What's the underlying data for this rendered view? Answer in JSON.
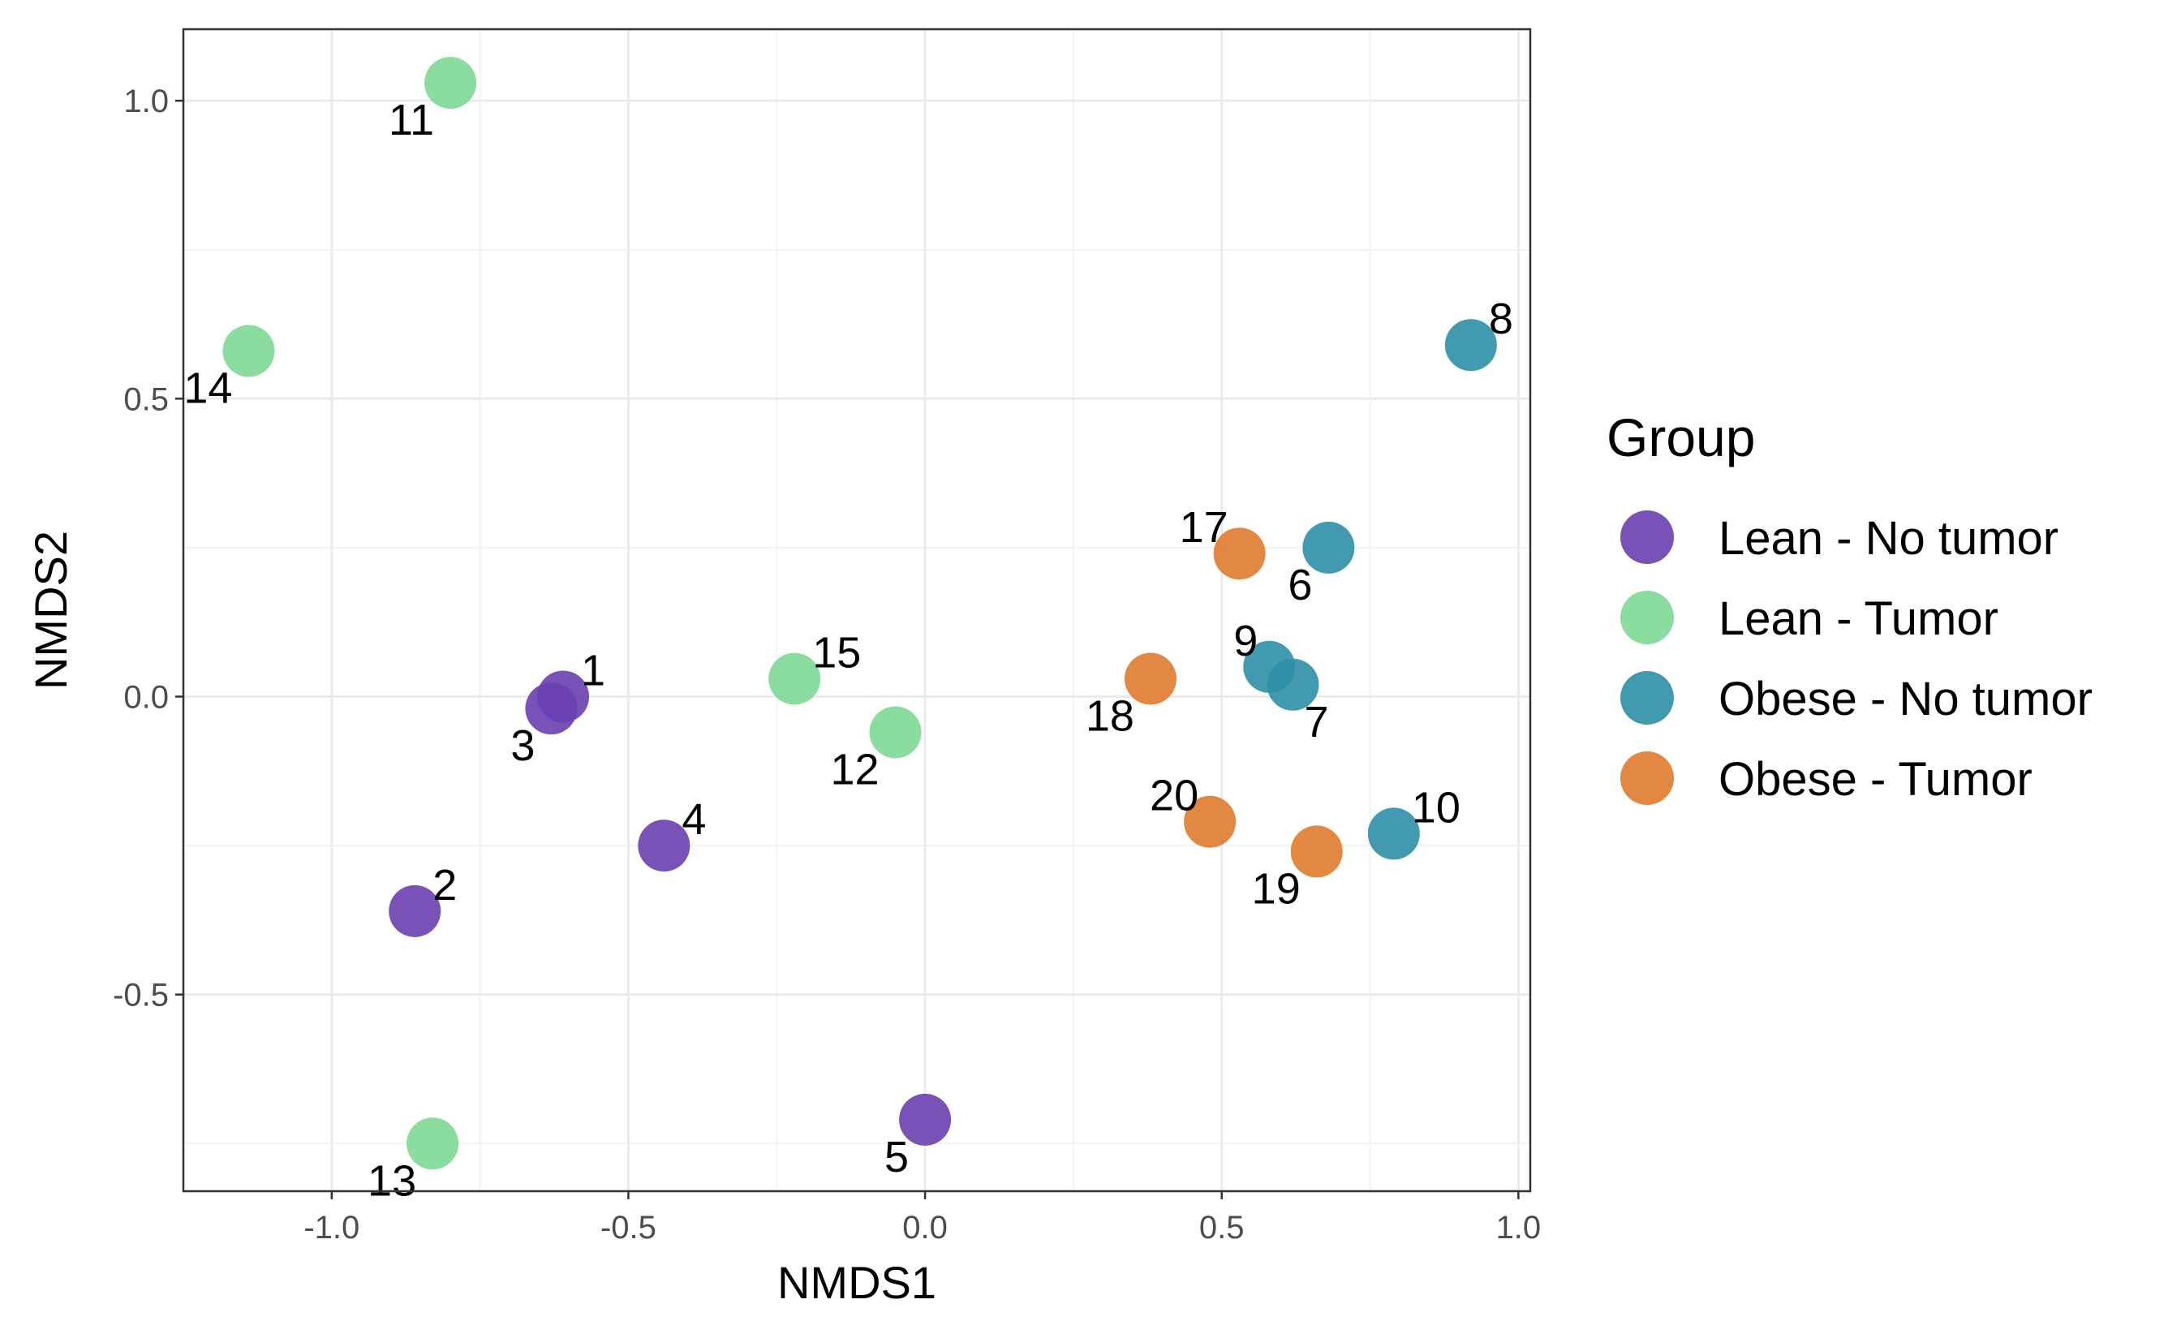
{
  "chart_data": {
    "type": "scatter",
    "title": "",
    "xlabel": "NMDS1",
    "ylabel": "NMDS2",
    "xlim": [
      -1.25,
      1.02
    ],
    "ylim": [
      -0.83,
      1.12
    ],
    "x_ticks": [
      -1.0,
      -0.5,
      0.0,
      0.5,
      1.0
    ],
    "x_tick_labels": [
      "-1.0",
      "-0.5",
      "0.0",
      "0.5",
      "1.0"
    ],
    "y_ticks": [
      -0.5,
      0.0,
      0.5,
      1.0
    ],
    "y_tick_labels": [
      "-0.5",
      "0.0",
      "0.5",
      "1.0"
    ],
    "grid": true,
    "legend": {
      "title": "Group",
      "position": "right"
    },
    "series": [
      {
        "name": "Lean - No tumor",
        "color": "#6a3fb0",
        "points": [
          {
            "label": "1",
            "x": -0.61,
            "y": 0.0,
            "label_dir": "upper-right"
          },
          {
            "label": "3",
            "x": -0.63,
            "y": -0.02,
            "label_dir": "lower-left"
          },
          {
            "label": "4",
            "x": -0.44,
            "y": -0.25,
            "label_dir": "upper-right"
          },
          {
            "label": "2",
            "x": -0.86,
            "y": -0.36,
            "label_dir": "upper-right"
          },
          {
            "label": "5",
            "x": 0.0,
            "y": -0.71,
            "label_dir": "lower-left"
          }
        ]
      },
      {
        "name": "Lean - Tumor",
        "color": "#7ed895",
        "points": [
          {
            "label": "11",
            "x": -0.8,
            "y": 1.03,
            "label_dir": "lower-left"
          },
          {
            "label": "14",
            "x": -1.14,
            "y": 0.58,
            "label_dir": "lower-left"
          },
          {
            "label": "15",
            "x": -0.22,
            "y": 0.03,
            "label_dir": "upper-right"
          },
          {
            "label": "12",
            "x": -0.05,
            "y": -0.06,
            "label_dir": "lower-left"
          },
          {
            "label": "13",
            "x": -0.83,
            "y": -0.75,
            "label_dir": "lower-left"
          }
        ]
      },
      {
        "name": "Obese - No tumor",
        "color": "#2e8fa8",
        "points": [
          {
            "label": "8",
            "x": 0.92,
            "y": 0.59,
            "label_dir": "upper-right"
          },
          {
            "label": "6",
            "x": 0.68,
            "y": 0.25,
            "label_dir": "lower-left"
          },
          {
            "label": "9",
            "x": 0.58,
            "y": 0.05,
            "label_dir": "upper-left"
          },
          {
            "label": "7",
            "x": 0.62,
            "y": 0.02,
            "label_dir": "lower-right"
          },
          {
            "label": "10",
            "x": 0.79,
            "y": -0.23,
            "label_dir": "upper-right"
          }
        ]
      },
      {
        "name": "Obese - Tumor",
        "color": "#e07b2f",
        "points": [
          {
            "label": "17",
            "x": 0.53,
            "y": 0.24,
            "label_dir": "upper-left"
          },
          {
            "label": "18",
            "x": 0.38,
            "y": 0.03,
            "label_dir": "lower-left"
          },
          {
            "label": "20",
            "x": 0.48,
            "y": -0.21,
            "label_dir": "upper-left"
          },
          {
            "label": "19",
            "x": 0.66,
            "y": -0.26,
            "label_dir": "lower-left"
          }
        ]
      }
    ]
  }
}
